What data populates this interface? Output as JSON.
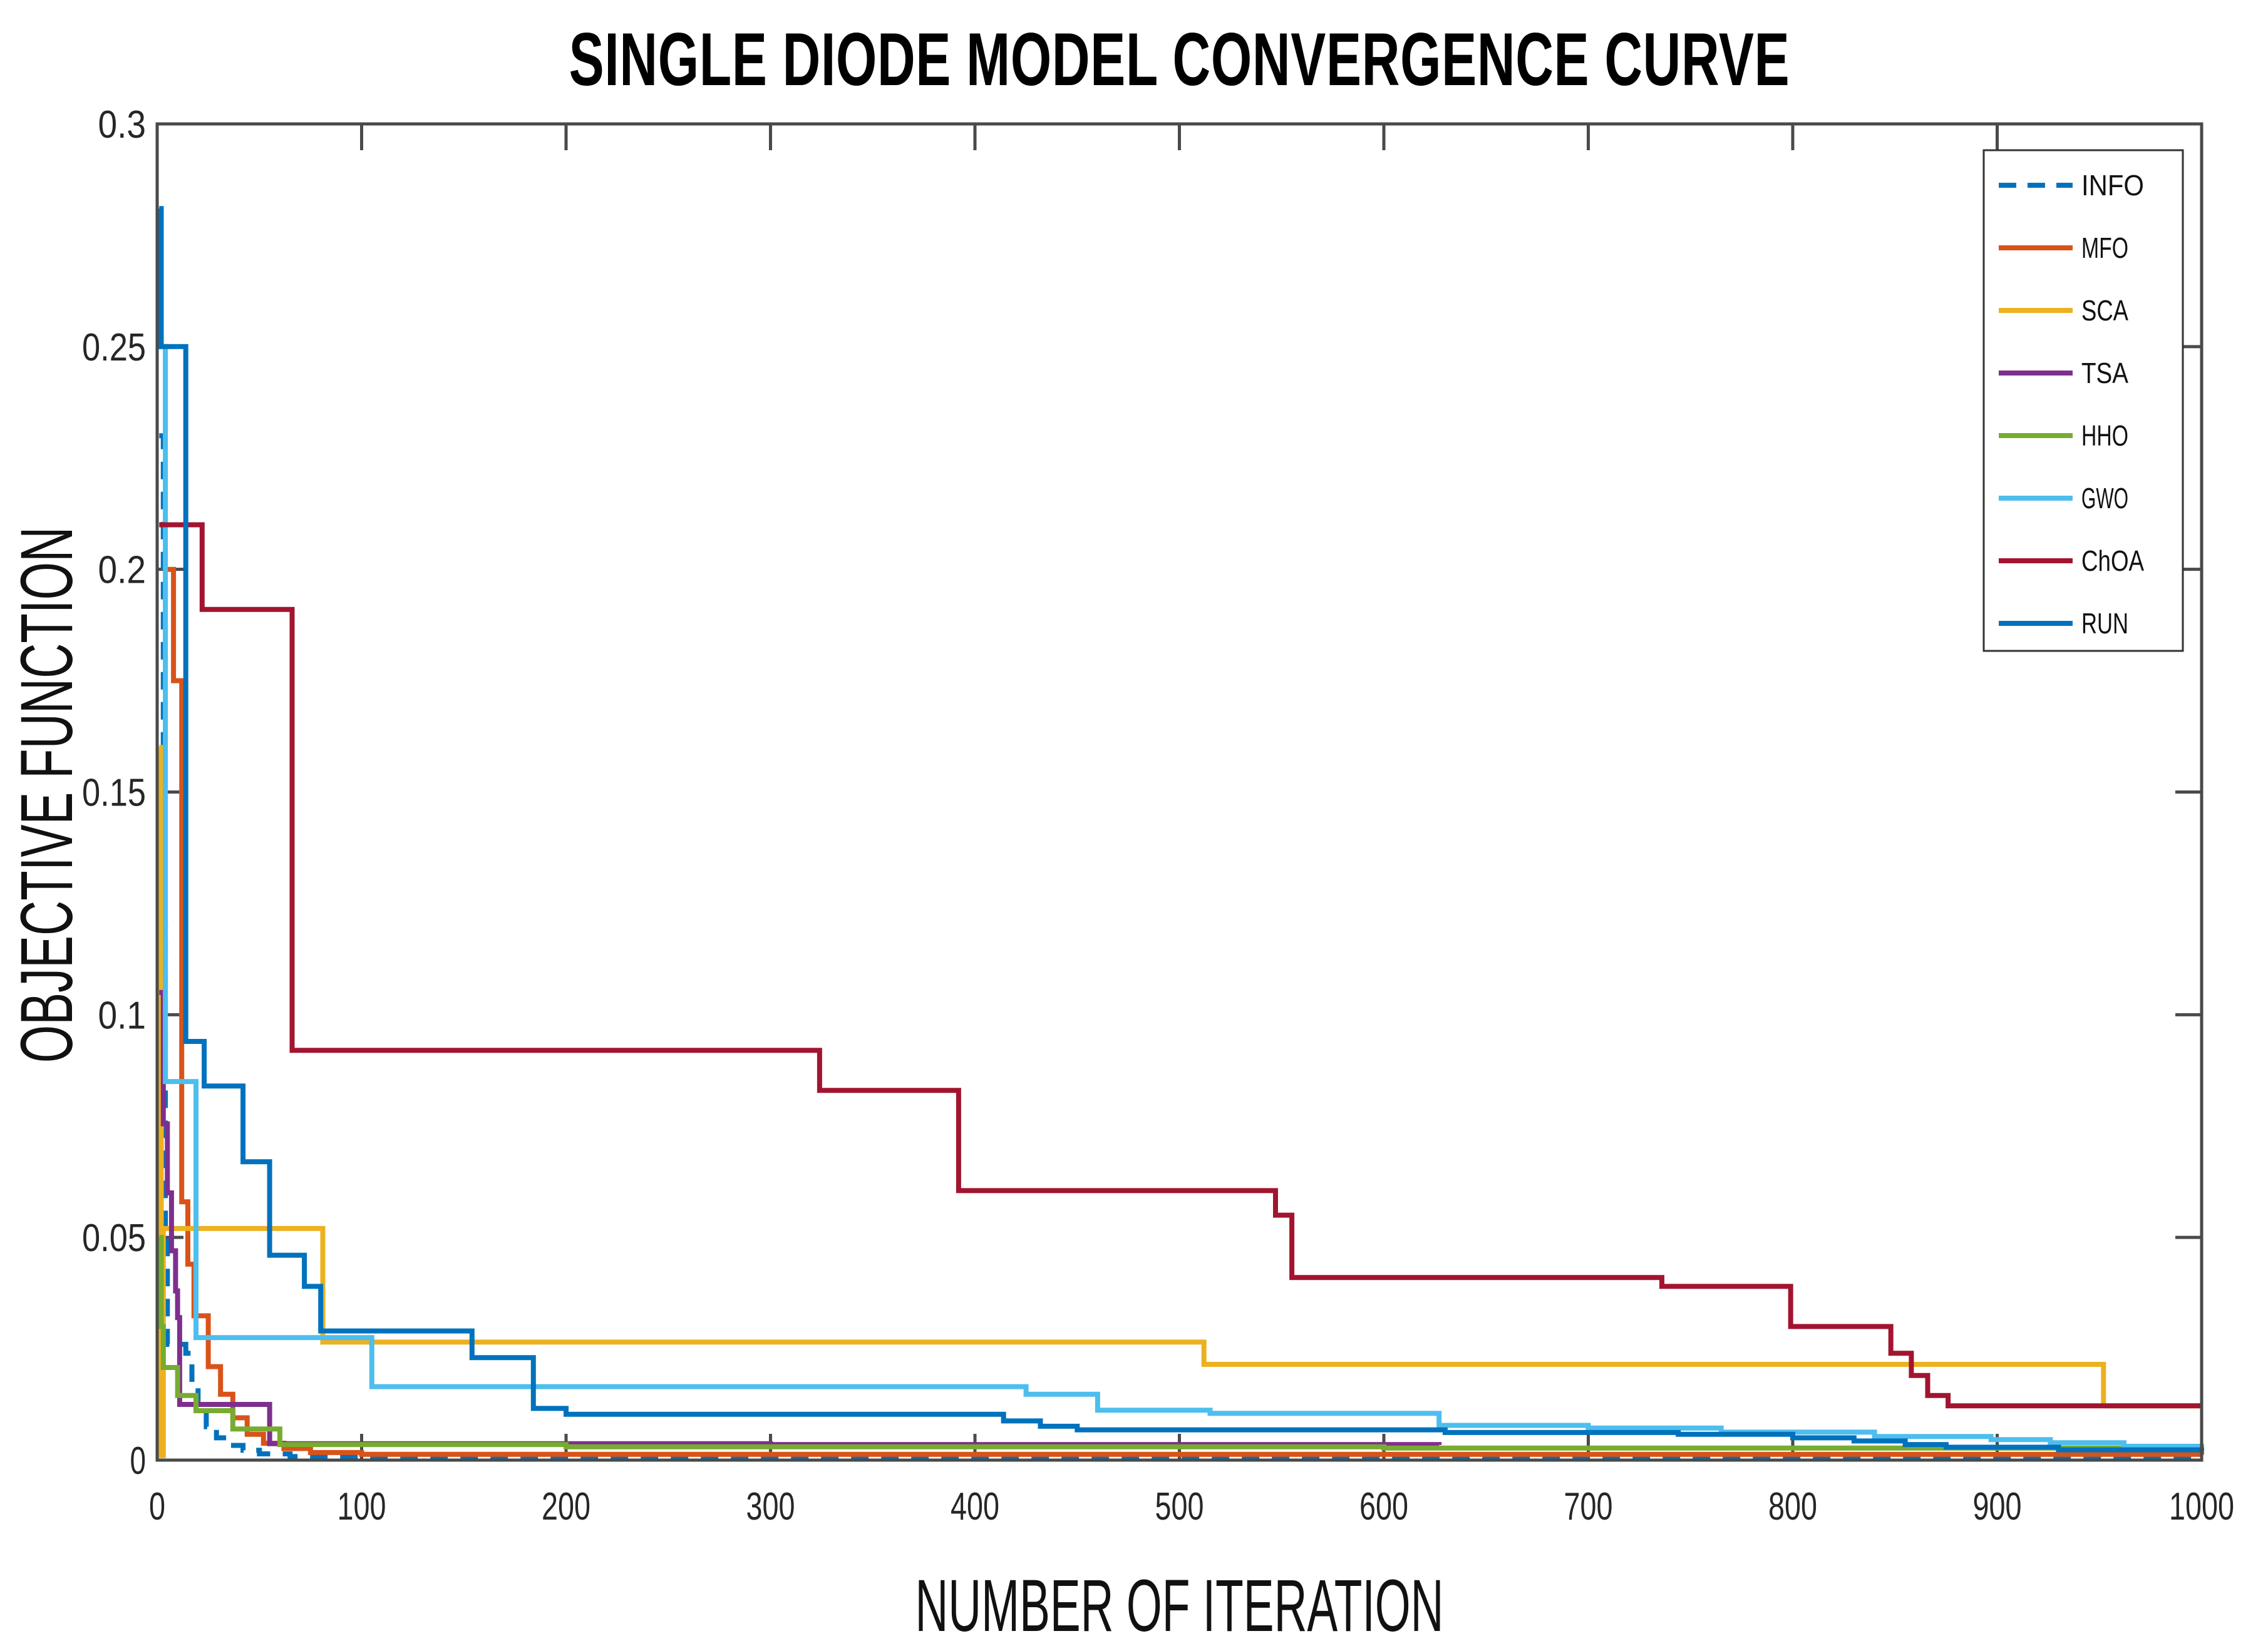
{
  "page": {
    "background": "#ffffff"
  },
  "chart_data": {
    "type": "line",
    "title": "SINGLE DIODE MODEL CONVERGENCE CURVE",
    "xlabel": "NUMBER OF ITERATION",
    "ylabel": "OBJECTIVE FUNCTION",
    "xlim": [
      0,
      1000
    ],
    "ylim": [
      0,
      0.3
    ],
    "xtick_values": [
      0,
      100,
      200,
      300,
      400,
      500,
      600,
      700,
      800,
      900,
      1000
    ],
    "xtick_labels": [
      "0",
      "100",
      "200",
      "300",
      "400",
      "500",
      "600",
      "700",
      "800",
      "900",
      "1000"
    ],
    "ytick_values": [
      0,
      0.05,
      0.1,
      0.15,
      0.2,
      0.25,
      0.3
    ],
    "ytick_labels": [
      "0",
      "0.05",
      "0.1",
      "0.15",
      "0.2",
      "0.25",
      "0.3"
    ],
    "grid": false,
    "legend_position": "top-right",
    "axis_color": "#4a4a4a",
    "tick_label_color": "#262626",
    "legend_border_color": "#333333",
    "series": [
      {
        "name": "INFO",
        "color": "#0072BD",
        "line_style": "dashed",
        "points": [
          [
            1,
            0.23
          ],
          [
            3,
            0.12
          ],
          [
            4,
            0.05
          ],
          [
            5,
            0.026
          ],
          [
            14,
            0.024
          ],
          [
            17,
            0.017
          ],
          [
            20,
            0.011
          ],
          [
            24,
            0.0075
          ],
          [
            29,
            0.005
          ],
          [
            35,
            0.0033
          ],
          [
            42,
            0.0022
          ],
          [
            50,
            0.0014
          ],
          [
            65,
            0.0008
          ],
          [
            1000,
            0.0005
          ]
        ]
      },
      {
        "name": "MFO",
        "color": "#D95319",
        "line_style": "solid",
        "points": [
          [
            4,
            0.2
          ],
          [
            8,
            0.175
          ],
          [
            12,
            0.058
          ],
          [
            15,
            0.044
          ],
          [
            18,
            0.0324
          ],
          [
            25,
            0.021
          ],
          [
            31,
            0.0148
          ],
          [
            37,
            0.0095
          ],
          [
            44,
            0.0058
          ],
          [
            52,
            0.0038
          ],
          [
            62,
            0.0026
          ],
          [
            75,
            0.0017
          ],
          [
            100,
            0.0013
          ],
          [
            1000,
            0.0012
          ]
        ]
      },
      {
        "name": "SCA",
        "color": "#EDB120",
        "line_style": "solid",
        "points": [
          [
            1,
            0.16
          ],
          [
            2,
            0.001
          ],
          [
            3,
            0.052
          ],
          [
            81,
            0.0265
          ],
          [
            512,
            0.0215
          ],
          [
            952,
            0.0122
          ],
          [
            1000,
            0.0122
          ]
        ]
      },
      {
        "name": "TSA",
        "color": "#7E2F8E",
        "line_style": "solid",
        "points": [
          [
            1,
            0.105
          ],
          [
            3,
            0.0755
          ],
          [
            5,
            0.06
          ],
          [
            7,
            0.047
          ],
          [
            9,
            0.038
          ],
          [
            10,
            0.032
          ],
          [
            11,
            0.0125
          ],
          [
            55,
            0.0037
          ],
          [
            300,
            0.0035
          ],
          [
            627,
            0.0034
          ]
        ]
      },
      {
        "name": "HHO",
        "color": "#77AC30",
        "line_style": "solid",
        "points": [
          [
            1,
            0.05
          ],
          [
            2,
            0.03
          ],
          [
            3,
            0.0208
          ],
          [
            10,
            0.0145
          ],
          [
            19,
            0.0111
          ],
          [
            37,
            0.007
          ],
          [
            60,
            0.0035
          ],
          [
            200,
            0.003
          ],
          [
            600,
            0.0027
          ],
          [
            1000,
            0.0025
          ]
        ]
      },
      {
        "name": "GWO",
        "color": "#4DBEEE",
        "line_style": "solid",
        "points": [
          [
            1,
            0.25
          ],
          [
            4,
            0.085
          ],
          [
            19,
            0.0275
          ],
          [
            105,
            0.0165
          ],
          [
            425,
            0.0148
          ],
          [
            460,
            0.0112
          ],
          [
            515,
            0.0105
          ],
          [
            627,
            0.0078
          ],
          [
            700,
            0.0072
          ],
          [
            765,
            0.0063
          ],
          [
            840,
            0.0053
          ],
          [
            897,
            0.0046
          ],
          [
            926,
            0.0039
          ],
          [
            962,
            0.0031
          ],
          [
            1000,
            0.0029
          ]
        ]
      },
      {
        "name": "ChOA",
        "color": "#A2142F",
        "line_style": "solid",
        "points": [
          [
            1,
            0.21
          ],
          [
            22,
            0.191
          ],
          [
            66,
            0.092
          ],
          [
            324,
            0.083
          ],
          [
            392,
            0.0605
          ],
          [
            547,
            0.055
          ],
          [
            555,
            0.041
          ],
          [
            736,
            0.039
          ],
          [
            799,
            0.03
          ],
          [
            848,
            0.024
          ],
          [
            858,
            0.019
          ],
          [
            866,
            0.0145
          ],
          [
            876,
            0.0122
          ],
          [
            1000,
            0.0122
          ]
        ]
      },
      {
        "name": "RUN",
        "color": "#0072BD",
        "line_style": "solid",
        "points": [
          [
            1,
            0.281
          ],
          [
            2,
            0.25
          ],
          [
            14,
            0.094
          ],
          [
            23,
            0.084
          ],
          [
            42,
            0.067
          ],
          [
            55,
            0.046
          ],
          [
            72,
            0.039
          ],
          [
            80,
            0.029
          ],
          [
            154,
            0.023
          ],
          [
            184,
            0.0116
          ],
          [
            200,
            0.0103
          ],
          [
            414,
            0.0088
          ],
          [
            432,
            0.0076
          ],
          [
            450,
            0.0068
          ],
          [
            630,
            0.0062
          ],
          [
            744,
            0.0058
          ],
          [
            800,
            0.005
          ],
          [
            830,
            0.0043
          ],
          [
            855,
            0.0035
          ],
          [
            875,
            0.0029
          ],
          [
            930,
            0.0023
          ],
          [
            1000,
            0.0019
          ]
        ]
      }
    ]
  }
}
